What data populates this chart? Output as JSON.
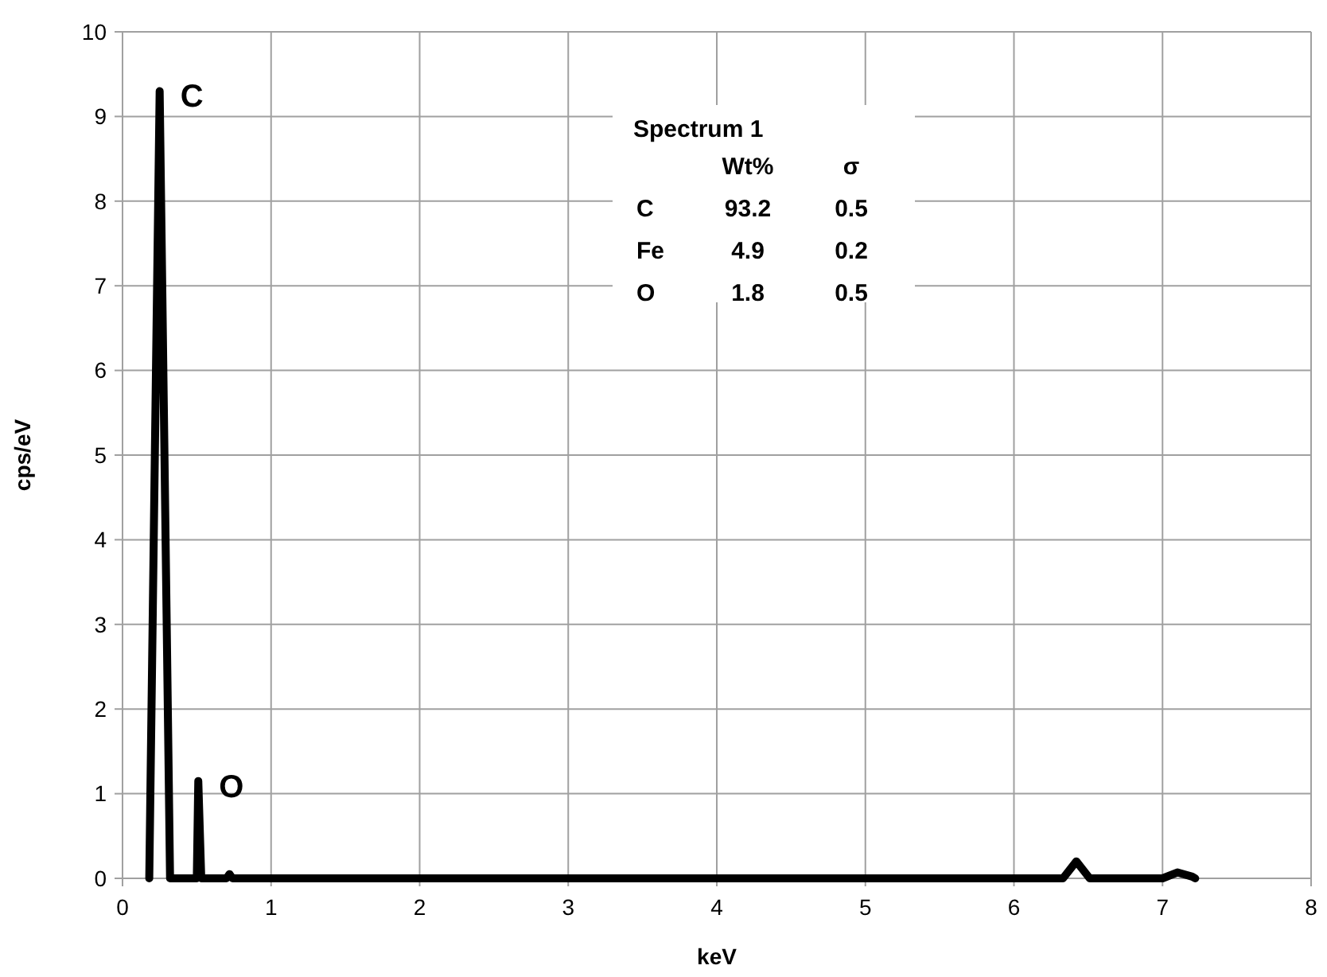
{
  "chart_data": {
    "type": "line",
    "xlabel": "keV",
    "ylabel": "cps/eV",
    "series": [
      {
        "color": "#000000",
        "x": [
          0.18,
          0.25,
          0.32,
          0.5,
          0.51,
          0.53,
          0.7,
          0.72,
          0.74,
          6.33,
          6.42,
          6.51,
          7.0,
          7.1,
          7.2,
          7.22
        ],
        "values": [
          0,
          9.3,
          0,
          0,
          1.15,
          0,
          0,
          0.05,
          0,
          0,
          0.2,
          0,
          0,
          0.07,
          0.02,
          0
        ]
      }
    ],
    "xlim": [
      0,
      8
    ],
    "xticks": [
      0,
      1,
      2,
      3,
      4,
      5,
      6,
      7,
      8
    ],
    "ylim": [
      0,
      10
    ],
    "yticks": [
      0,
      1,
      2,
      3,
      4,
      5,
      6,
      7,
      8,
      9,
      10
    ],
    "grid": true,
    "marker": "none",
    "line_style": "solid",
    "annotations": [
      {
        "text": "C",
        "x": 0.25,
        "y": 9.3
      },
      {
        "text": "O",
        "x": 0.51,
        "y": 1.15
      },
      "Spectrum 1",
      "\tWt%\tσ",
      "C\t93.2\t0.5",
      "Fe\t4.9\t0.2",
      "O\t1.8\t0.5"
    ]
  }
}
